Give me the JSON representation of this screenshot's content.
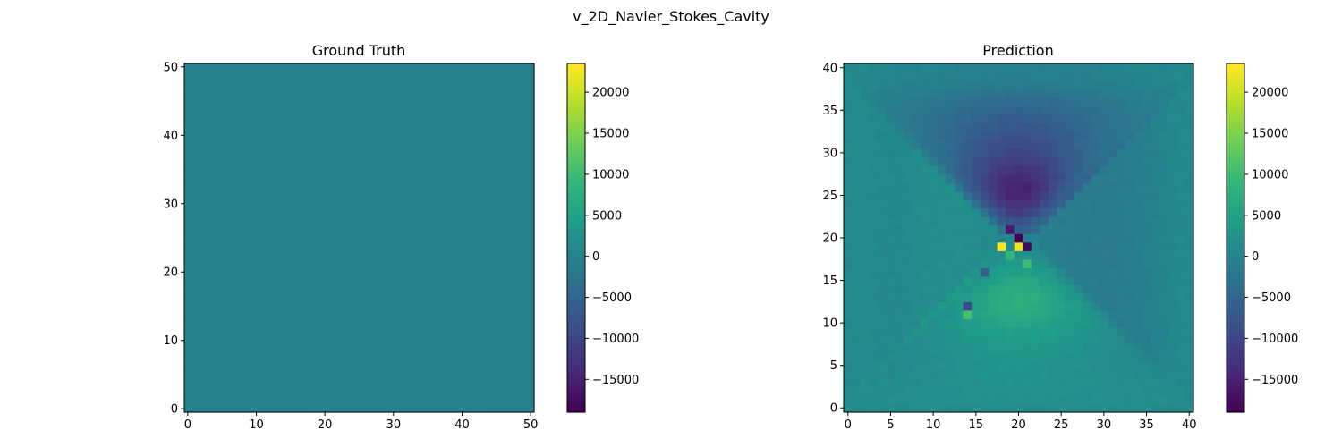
{
  "figure": {
    "suptitle": "v_2D_Navier_Stokes_Cavity"
  },
  "colormap": [
    "#440154",
    "#482878",
    "#3e4989",
    "#31688e",
    "#26828e",
    "#1f9e89",
    "#35b779",
    "#6ece58",
    "#b5de2b",
    "#fde725"
  ],
  "chart_data": [
    {
      "type": "heatmap",
      "title": "Ground Truth",
      "grid_size": 51,
      "xlim": [
        -0.5,
        50.5
      ],
      "ylim": [
        -0.5,
        50.5
      ],
      "xticks": [
        0,
        10,
        20,
        30,
        40,
        50
      ],
      "yticks": [
        0,
        10,
        20,
        30,
        40,
        50
      ],
      "uniform_value": 0,
      "colorbar": {
        "vmin": -19000,
        "vmax": 23500,
        "ticks": [
          -15000,
          -10000,
          -5000,
          0,
          5000,
          10000,
          15000,
          20000
        ],
        "tick_labels": [
          "−15000",
          "−10000",
          "−5000",
          "0",
          "5000",
          "10000",
          "15000",
          "20000"
        ]
      }
    },
    {
      "type": "heatmap",
      "title": "Prediction",
      "grid_size": 41,
      "xlim": [
        -0.5,
        40.5
      ],
      "ylim": [
        -0.5,
        40.5
      ],
      "xticks": [
        0,
        5,
        10,
        15,
        20,
        25,
        30,
        35,
        40
      ],
      "yticks": [
        0,
        5,
        10,
        15,
        20,
        25,
        30,
        35,
        40
      ],
      "field": {
        "description": "approximate reconstruction",
        "center": [
          20,
          20
        ],
        "upper_wedge_min": -13000,
        "lower_wedge_max": 7500,
        "hotspots": [
          {
            "x": 18,
            "y": 19,
            "value": 23000
          },
          {
            "x": 20,
            "y": 19,
            "value": 22000
          },
          {
            "x": 20,
            "y": 20,
            "value": -19000
          },
          {
            "x": 19,
            "y": 21,
            "value": -16000
          },
          {
            "x": 21,
            "y": 19,
            "value": -18000
          },
          {
            "x": 19,
            "y": 18,
            "value": 9000
          },
          {
            "x": 21,
            "y": 17,
            "value": 10000
          },
          {
            "x": 14,
            "y": 12,
            "value": -9000
          },
          {
            "x": 14,
            "y": 11,
            "value": 11000
          },
          {
            "x": 16,
            "y": 16,
            "value": -6000
          }
        ]
      },
      "colorbar": {
        "vmin": -19000,
        "vmax": 23500,
        "ticks": [
          -15000,
          -10000,
          -5000,
          0,
          5000,
          10000,
          15000,
          20000
        ],
        "tick_labels": [
          "−15000",
          "−10000",
          "−5000",
          "0",
          "5000",
          "10000",
          "15000",
          "20000"
        ]
      }
    }
  ]
}
